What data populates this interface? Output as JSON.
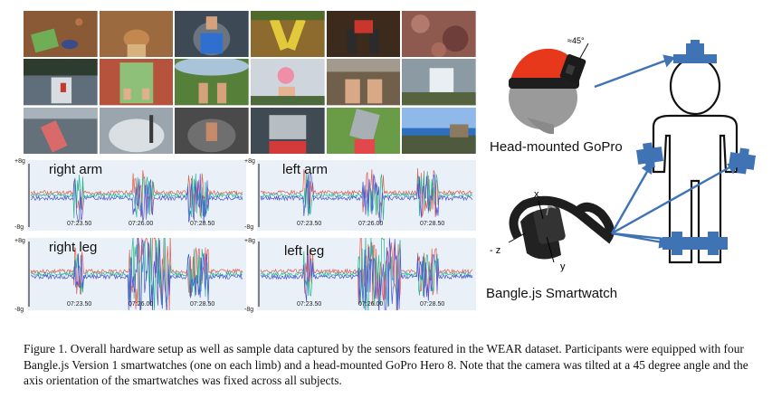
{
  "plots": [
    {
      "id": "right-arm",
      "title": "right arm",
      "y_top": "+8g",
      "y_bottom": "-8g",
      "ticks": [
        "07:23.50",
        "07:26.00",
        "07:28.50"
      ]
    },
    {
      "id": "left-arm",
      "title": "left arm",
      "y_top": "+8g",
      "y_bottom": "-8g",
      "ticks": [
        "07:23.50",
        "07:26.00",
        "07:28.50"
      ]
    },
    {
      "id": "right-leg",
      "title": "right leg",
      "y_top": "+8g",
      "y_bottom": "-8g",
      "ticks": [
        "07:23.50",
        "07:26.00",
        "07:28.50"
      ]
    },
    {
      "id": "left-leg",
      "title": "left leg",
      "y_top": "+8g",
      "y_bottom": "-8g",
      "ticks": [
        "07:23.50",
        "07:26.00",
        "07:28.50"
      ]
    }
  ],
  "figure": {
    "angle_label": "≈45°",
    "gopro_label": "Head-mounted GoPro",
    "watch_label": "Bangle.js Smartwatch",
    "axis_x": "x",
    "axis_y": "y",
    "axis_z": "- z"
  },
  "caption": "Figure 1. Overall hardware setup as well as sample data captured by the sensors featured in the WEAR dataset. Participants were equipped with four Bangle.js Version 1 smartwatches (one on each limb) and a head-mounted GoPro Hero 8. Note that the camera was tilted at a 45 degree angle and the axis orientation of the smartwatches was fixed across all subjects.",
  "colors": {
    "plot_bg": "#eaf0f7",
    "signal_x": "#4b4fd6",
    "signal_y": "#1fb98f",
    "signal_z": "#e05a4f",
    "sensor_blue": "#3f73b4",
    "cap_red": "#e8381c"
  }
}
